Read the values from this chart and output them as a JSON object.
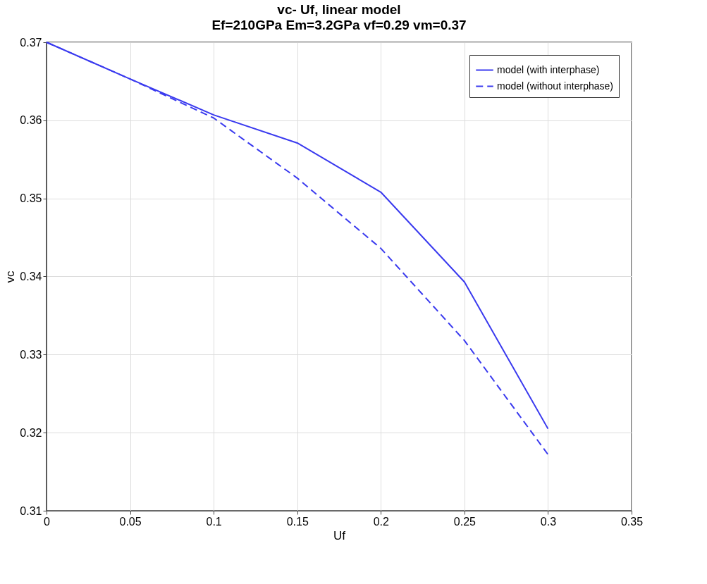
{
  "chart_data": {
    "type": "line",
    "title": "vc- Uf, linear model",
    "subtitle": "Ef=210GPa Em=3.2GPa vf=0.29 vm=0.37",
    "xlabel": "Uf",
    "ylabel": "vc",
    "x": [
      0,
      0.05,
      0.1,
      0.15,
      0.2,
      0.25,
      0.3
    ],
    "series": [
      {
        "name": "model (with interphase)",
        "color": "#3a3aef",
        "line_style": "solid",
        "values": [
          0.37,
          0.3653,
          0.3607,
          0.3571,
          0.3508,
          0.3393,
          0.3205
        ]
      },
      {
        "name": "model (without interphase)",
        "color": "#3a3aef",
        "line_style": "dashed",
        "values": [
          0.37,
          0.3653,
          0.3603,
          0.3526,
          0.3436,
          0.3318,
          0.3172
        ]
      }
    ],
    "xlim": [
      0,
      0.35
    ],
    "xticks": [
      0,
      0.05,
      0.1,
      0.15,
      0.2,
      0.25,
      0.3,
      0.35
    ],
    "ylim": [
      0.31,
      0.37
    ],
    "yticks": [
      0.31,
      0.32,
      0.33,
      0.34,
      0.35,
      0.36,
      0.37
    ],
    "grid": true,
    "legend": "top right",
    "marker": "none"
  }
}
